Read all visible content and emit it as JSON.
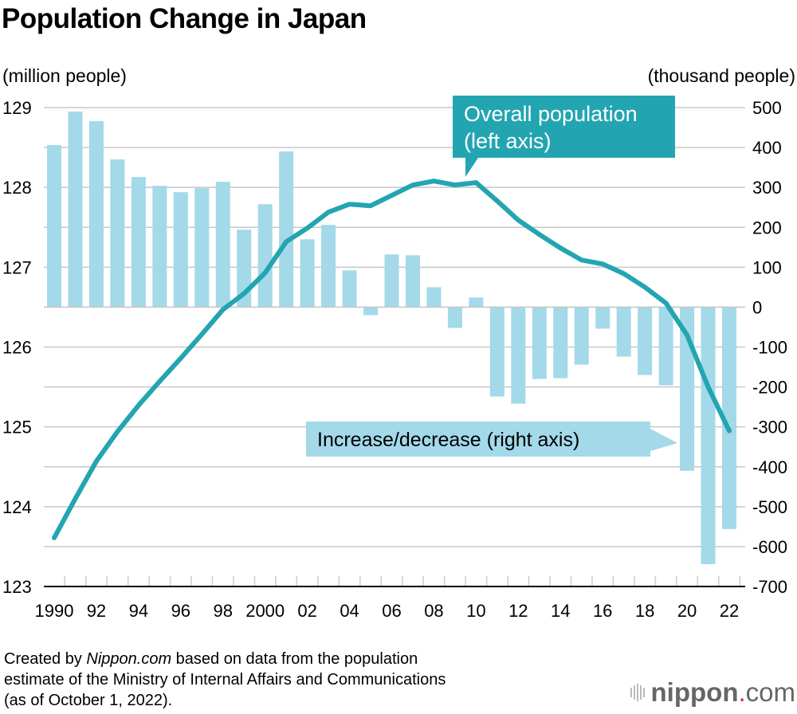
{
  "chart_data": {
    "type": "bar+line",
    "title": "Population Change in Japan",
    "left_axis": {
      "label": "(million people)",
      "range": [
        123,
        129
      ],
      "ticks": [
        123,
        124,
        125,
        126,
        127,
        128,
        129
      ]
    },
    "right_axis": {
      "label": "(thousand people)",
      "range": [
        -700,
        500
      ],
      "ticks": [
        -700,
        -600,
        -500,
        -400,
        -300,
        -200,
        -100,
        0,
        100,
        200,
        300,
        400,
        500
      ]
    },
    "x": [
      1990,
      1991,
      1992,
      1993,
      1994,
      1995,
      1996,
      1997,
      1998,
      1999,
      2000,
      2001,
      2002,
      2003,
      2004,
      2005,
      2006,
      2007,
      2008,
      2009,
      2010,
      2011,
      2012,
      2013,
      2014,
      2015,
      2016,
      2017,
      2018,
      2019,
      2020,
      2021,
      2022
    ],
    "x_tick_labels": [
      "1990",
      "92",
      "94",
      "96",
      "98",
      "2000",
      "02",
      "04",
      "06",
      "08",
      "10",
      "12",
      "14",
      "16",
      "18",
      "20",
      "22"
    ],
    "grid": true,
    "series": [
      {
        "name": "Overall population (left axis)",
        "type": "line",
        "axis": "left",
        "color": "#23a5b1",
        "values": [
          123.61,
          124.1,
          124.57,
          124.94,
          125.27,
          125.57,
          125.86,
          126.16,
          126.47,
          126.67,
          126.93,
          127.32,
          127.49,
          127.69,
          127.79,
          127.77,
          127.9,
          128.03,
          128.08,
          128.03,
          128.06,
          127.83,
          127.59,
          127.41,
          127.24,
          127.09,
          127.04,
          126.92,
          126.75,
          126.55,
          126.15,
          125.5,
          124.95
        ]
      },
      {
        "name": "Increase/decrease (right axis)",
        "type": "bar",
        "axis": "right",
        "color": "#a3d9e9",
        "values": [
          406,
          490,
          466,
          370,
          326,
          304,
          288,
          298,
          314,
          194,
          258,
          390,
          170,
          206,
          92,
          -20,
          132,
          130,
          50,
          -52,
          24,
          -224,
          -242,
          -180,
          -178,
          -144,
          -54,
          -124,
          -170,
          -196,
          -410,
          -644,
          -556
        ]
      }
    ]
  },
  "footer": {
    "line1_prefix": "Created by ",
    "line1_source": "Nippon.com",
    "line1_suffix": " based on data from the population",
    "line2": "estimate of the Ministry of Internal Affairs and Communications",
    "line3": "(as of October 1, 2022)."
  },
  "logo": {
    "text_bold": "nippon",
    "dot": ".",
    "text_light": "com"
  }
}
